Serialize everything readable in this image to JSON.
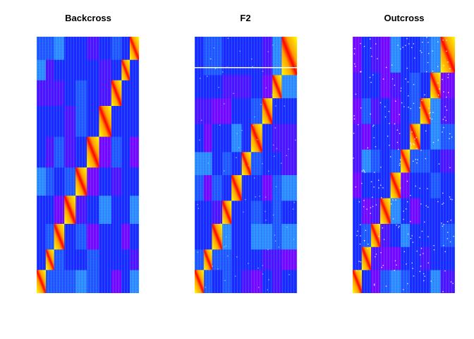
{
  "chart_data": [
    {
      "type": "heatmap",
      "title": "Backcross",
      "chromosome_blocks": 10,
      "relative_block_sizes": [
        0.09,
        0.08,
        0.1,
        0.11,
        0.11,
        0.12,
        0.12,
        0.1,
        0.08,
        0.09
      ],
      "value_range": [
        0,
        1
      ],
      "colormap": [
        "#ff0000",
        "#ffff00",
        "#00bfff",
        "#0000ff",
        "#8000ff"
      ],
      "axes": false
    },
    {
      "type": "heatmap",
      "title": "F2",
      "chromosome_blocks": 10,
      "relative_block_sizes": [
        0.09,
        0.08,
        0.1,
        0.09,
        0.1,
        0.09,
        0.11,
        0.1,
        0.09,
        0.15
      ],
      "value_range": [
        0,
        1
      ],
      "colormap": [
        "#ff0000",
        "#ffff00",
        "#00bfff",
        "#0000ff",
        "#8000ff"
      ],
      "axes": false
    },
    {
      "type": "heatmap",
      "title": "Outcross",
      "chromosome_blocks": 10,
      "relative_block_sizes": [
        0.09,
        0.09,
        0.09,
        0.1,
        0.1,
        0.09,
        0.1,
        0.1,
        0.1,
        0.14
      ],
      "value_range": [
        0,
        1
      ],
      "colormap": [
        "#ff0000",
        "#ffff00",
        "#00bfff",
        "#0000ff",
        "#8000ff"
      ],
      "axes": false
    }
  ]
}
